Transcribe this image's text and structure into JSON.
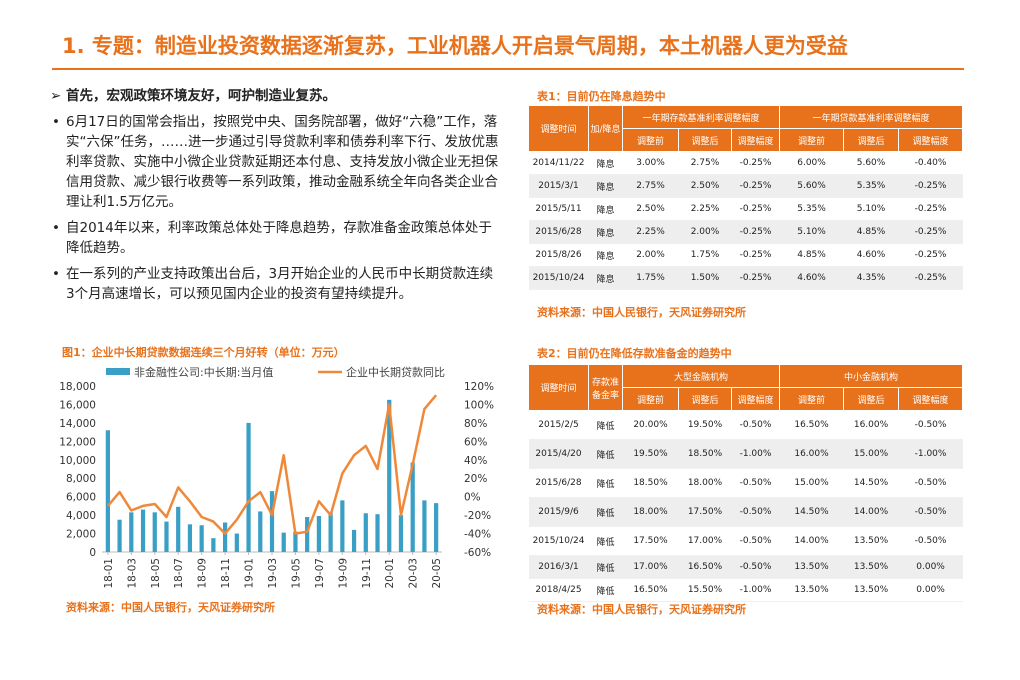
{
  "title": "1. 专题：制造业投资数据逐渐复苏，工业机器人开启景气周期，本土机器人更为受益",
  "left": {
    "lead": "首先，宏观政策环境友好，呵护制造业复苏。",
    "bullets": [
      "6月17日的国常会指出，按照党中央、国务院部署，做好“六稳”工作，落实“六保”任务，……进一步通过引导贷款利率和债券利率下行、发放优惠利率贷款、实施中小微企业贷款延期还本付息、支持发放小微企业无担保信用贷款、减少银行收费等一系列政策，推动金融系统全年向各类企业合理让利1.5万亿元。",
      "自2014年以来，利率政策总体处于降息趋势，存款准备金政策总体处于降低趋势。",
      "在一系列的产业支持政策出台后，3月开始企业的人民币中长期贷款连续3个月高速增长，可以预见国内企业的投资有望持续提升。"
    ]
  },
  "chart": {
    "caption": "图1：企业中长期贷款数据连续三个月好转（单位：万元）",
    "source": "资料来源：中国人民银行，天风证券研究所"
  },
  "chart_data": {
    "type": "bar",
    "series": [
      {
        "name": "非金融性公司:中长期:当月值",
        "type": "bar",
        "axis": "left",
        "color": "#3a9fc4",
        "values": [
          13200,
          3500,
          4300,
          4600,
          4300,
          3300,
          4900,
          3000,
          2900,
          1500,
          3200,
          2000,
          14000,
          4400,
          6600,
          2100,
          2200,
          3800,
          3900,
          4300,
          5600,
          2400,
          4200,
          4100,
          16500,
          4000,
          9700,
          5600,
          5300
        ]
      },
      {
        "name": "企业中长期贷款同比",
        "type": "line",
        "axis": "right",
        "color": "#f0883a",
        "values": [
          -10,
          5,
          -15,
          -10,
          -8,
          -22,
          10,
          -5,
          -22,
          -27,
          -40,
          -25,
          -5,
          5,
          -20,
          45,
          -40,
          -38,
          -5,
          -20,
          25,
          45,
          55,
          30,
          100,
          -20,
          35,
          95,
          110
        ]
      }
    ],
    "x_ticks": [
      "18-01",
      "18-03",
      "18-05",
      "18-07",
      "18-09",
      "18-11",
      "19-01",
      "19-03",
      "19-05",
      "19-07",
      "19-09",
      "19-11",
      "20-01",
      "20-03",
      "20-05"
    ],
    "y_left": {
      "min": 0,
      "max": 18000,
      "ticks": [
        "0",
        "2,000",
        "4,000",
        "6,000",
        "8,000",
        "10,000",
        "12,000",
        "14,000",
        "16,000",
        "18,000"
      ]
    },
    "y_right": {
      "min": -60,
      "max": 120,
      "ticks": [
        "-60%",
        "-40%",
        "-20%",
        "0%",
        "20%",
        "40%",
        "60%",
        "80%",
        "100%",
        "120%"
      ]
    },
    "legend": "top"
  },
  "table1": {
    "caption": "表1：目前仍在降息趋势中",
    "source": "资料来源：中国人民银行，天风证券研究所",
    "h_time": "调整时间",
    "h_dir": "加/降息",
    "h_group1": "一年期存款基准利率调整幅度",
    "h_group2": "一年期贷款基准利率调整幅度",
    "h_before": "调整前",
    "h_after": "调整后",
    "h_delta": "调整幅度",
    "rows": [
      [
        "2014/11/22",
        "降息",
        "3.00%",
        "2.75%",
        "-0.25%",
        "6.00%",
        "5.60%",
        "-0.40%"
      ],
      [
        "2015/3/1",
        "降息",
        "2.75%",
        "2.50%",
        "-0.25%",
        "5.60%",
        "5.35%",
        "-0.25%"
      ],
      [
        "2015/5/11",
        "降息",
        "2.50%",
        "2.25%",
        "-0.25%",
        "5.35%",
        "5.10%",
        "-0.25%"
      ],
      [
        "2015/6/28",
        "降息",
        "2.25%",
        "2.00%",
        "-0.25%",
        "5.10%",
        "4.85%",
        "-0.25%"
      ],
      [
        "2015/8/26",
        "降息",
        "2.00%",
        "1.75%",
        "-0.25%",
        "4.85%",
        "4.60%",
        "-0.25%"
      ],
      [
        "2015/10/24",
        "降息",
        "1.75%",
        "1.50%",
        "-0.25%",
        "4.60%",
        "4.35%",
        "-0.25%"
      ]
    ]
  },
  "table2": {
    "caption": "表2：目前仍在降低存款准备金的趋势中",
    "source": "资料来源：中国人民银行，天风证券研究所",
    "h_time": "调整时间",
    "h_dir": "存款准备金率",
    "h_group1": "大型金融机构",
    "h_group2": "中小金融机构",
    "h_before": "调整前",
    "h_after": "调整后",
    "h_delta": "调整幅度",
    "rows": [
      [
        "2015/2/5",
        "降低",
        "20.00%",
        "19.50%",
        "-0.50%",
        "16.50%",
        "16.00%",
        "-0.50%"
      ],
      [
        "2015/4/20",
        "降低",
        "19.50%",
        "18.50%",
        "-1.00%",
        "16.00%",
        "15.00%",
        "-1.00%"
      ],
      [
        "2015/6/28",
        "降低",
        "18.50%",
        "18.00%",
        "-0.50%",
        "15.00%",
        "14.50%",
        "-0.50%"
      ],
      [
        "2015/9/6",
        "降低",
        "18.00%",
        "17.50%",
        "-0.50%",
        "14.50%",
        "14.00%",
        "-0.50%"
      ],
      [
        "2015/10/24",
        "降低",
        "17.50%",
        "17.00%",
        "-0.50%",
        "14.00%",
        "13.50%",
        "-0.50%"
      ],
      [
        "2016/3/1",
        "降低",
        "17.00%",
        "16.50%",
        "-0.50%",
        "13.50%",
        "13.50%",
        "0.00%"
      ],
      [
        "2018/4/25",
        "降低",
        "16.50%",
        "15.50%",
        "-1.00%",
        "13.50%",
        "13.50%",
        "0.00%"
      ]
    ]
  }
}
